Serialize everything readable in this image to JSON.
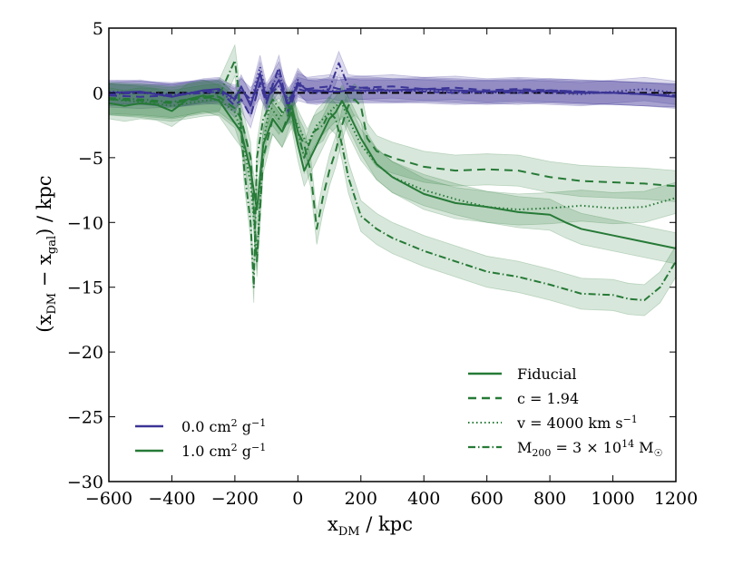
{
  "chart_data": {
    "type": "line",
    "xlabel": "x_DM / kpc",
    "ylabel": "(x_DM − x_gal) / kpc",
    "xlim": [
      -600,
      1200
    ],
    "ylim": [
      -30,
      5
    ],
    "xticks": [
      -600,
      -400,
      -200,
      0,
      200,
      400,
      600,
      800,
      1000,
      1200
    ],
    "yticks": [
      5,
      0,
      -5,
      -10,
      -15,
      -20,
      -25,
      -30
    ],
    "xtick_labels": [
      "−600",
      "−400",
      "−200",
      "0",
      "200",
      "400",
      "600",
      "800",
      "1000",
      "1200"
    ],
    "ytick_labels": [
      "5",
      "0",
      "−5",
      "−10",
      "−15",
      "−20",
      "−25",
      "−30"
    ],
    "grid": false,
    "colors": {
      "sigma0": "#3b3496",
      "sigma1": "#267a37"
    },
    "legend_sigma": {
      "placement": "lower-left",
      "entries": [
        {
          "name": "0.0 cm² g⁻¹",
          "color_key": "sigma0",
          "dash": "solid"
        },
        {
          "name": "1.0 cm² g⁻¹",
          "color_key": "sigma1",
          "dash": "solid"
        }
      ]
    },
    "legend_style": {
      "placement": "lower-right",
      "entries": [
        {
          "name": "Fiducial",
          "dash": "solid"
        },
        {
          "name": "c = 1.94",
          "dash": "dashed"
        },
        {
          "name": "v = 4000 km s⁻¹",
          "dash": "dotted"
        },
        {
          "name": "M₂₀₀ = 3 × 10¹⁴ M☉",
          "dash": "dashdot"
        }
      ]
    },
    "reference_line": {
      "y": 0,
      "style": "dashed",
      "color": "#000000"
    },
    "series": [
      {
        "group": "sigma0",
        "style": "solid",
        "band": 0.9,
        "x": [
          -600,
          -500,
          -400,
          -300,
          -250,
          -200,
          -180,
          -150,
          -120,
          -100,
          -60,
          -30,
          0,
          30,
          60,
          100,
          130,
          160,
          200,
          300,
          400,
          500,
          600,
          700,
          800,
          900,
          1000,
          1100,
          1200
        ],
        "y": [
          0.0,
          0.1,
          -0.3,
          0.2,
          0.3,
          -0.5,
          0.5,
          -1.0,
          1.5,
          -0.5,
          1.0,
          -1.0,
          0.8,
          0.2,
          0.2,
          0.1,
          0.1,
          0.2,
          0.2,
          0.2,
          0.3,
          0.2,
          0.1,
          0.2,
          0.1,
          0.0,
          0.0,
          -0.1,
          -0.3
        ]
      },
      {
        "group": "sigma0",
        "style": "dashed",
        "band": 0.9,
        "x": [
          -600,
          -500,
          -400,
          -300,
          -250,
          -200,
          -180,
          -150,
          -120,
          -100,
          -60,
          -30,
          0,
          30,
          60,
          100,
          130,
          160,
          200,
          300,
          400,
          500,
          600,
          700,
          800,
          900,
          1000,
          1100,
          1200
        ],
        "y": [
          -0.2,
          -0.3,
          -0.2,
          0.1,
          0.2,
          -1.0,
          -0.5,
          -1.8,
          0.8,
          -0.8,
          2.0,
          -1.5,
          0.6,
          0.3,
          0.4,
          0.5,
          0.3,
          0.3,
          0.4,
          0.5,
          0.3,
          0.4,
          0.2,
          0.3,
          0.2,
          0.1,
          0.0,
          -0.1,
          -0.2
        ]
      },
      {
        "group": "sigma0",
        "style": "dotted",
        "band": 0.9,
        "x": [
          -600,
          -500,
          -400,
          -300,
          -250,
          -200,
          -180,
          -150,
          -120,
          -100,
          -60,
          -30,
          0,
          30,
          60,
          100,
          130,
          160,
          200,
          300,
          400,
          500,
          600,
          700,
          800,
          900,
          1000,
          1100,
          1200
        ],
        "y": [
          0.1,
          0.0,
          -0.1,
          0.1,
          0.0,
          -0.6,
          0.3,
          -0.8,
          2.0,
          -0.2,
          1.5,
          -0.8,
          1.0,
          0.1,
          0.0,
          0.2,
          0.1,
          0.2,
          0.1,
          0.1,
          0.2,
          0.1,
          0.0,
          0.1,
          0.0,
          -0.1,
          0.1,
          0.3,
          0.0
        ]
      },
      {
        "group": "sigma0",
        "style": "dashdot",
        "band": 0.9,
        "x": [
          -600,
          -500,
          -400,
          -300,
          -250,
          -200,
          -180,
          -150,
          -120,
          -100,
          -60,
          -30,
          0,
          30,
          60,
          100,
          130,
          160,
          200,
          300,
          400,
          500,
          600,
          700,
          800,
          900,
          1000,
          1100,
          1200
        ],
        "y": [
          -0.1,
          0.0,
          -0.2,
          0.0,
          0.1,
          -0.3,
          0.2,
          -0.5,
          0.5,
          -0.3,
          0.5,
          -0.5,
          0.3,
          0.1,
          0.1,
          0.3,
          2.3,
          0.5,
          0.4,
          0.2,
          0.1,
          0.0,
          0.1,
          0.0,
          0.2,
          0.1,
          0.0,
          -0.1,
          -0.2
        ]
      },
      {
        "group": "sigma1",
        "style": "solid",
        "band": 1.2,
        "x": [
          -600,
          -550,
          -500,
          -450,
          -400,
          -350,
          -300,
          -250,
          -210,
          -180,
          -150,
          -130,
          -110,
          -80,
          -50,
          -20,
          0,
          20,
          40,
          60,
          80,
          100,
          120,
          140,
          160,
          200,
          250,
          300,
          400,
          500,
          600,
          700,
          800,
          850,
          900,
          1000,
          1100,
          1200
        ],
        "y": [
          -0.8,
          -1.0,
          -0.8,
          -0.9,
          -1.4,
          -0.5,
          -0.2,
          -0.6,
          -2.0,
          -3.0,
          -6.0,
          -9.0,
          -4.0,
          -2.0,
          -3.0,
          -1.5,
          -4.0,
          -6.0,
          -5.0,
          -4.0,
          -3.0,
          -2.0,
          -1.5,
          -0.6,
          -1.5,
          -3.5,
          -5.5,
          -6.5,
          -7.8,
          -8.5,
          -8.8,
          -9.2,
          -9.4,
          -10.0,
          -10.5,
          -11.0,
          -11.5,
          -12.0
        ]
      },
      {
        "group": "sigma1",
        "style": "dashed",
        "band": 1.2,
        "x": [
          -600,
          -500,
          -400,
          -300,
          -250,
          -200,
          -180,
          -150,
          -130,
          -110,
          -80,
          -50,
          -20,
          0,
          20,
          40,
          60,
          80,
          100,
          120,
          140,
          160,
          180,
          200,
          220,
          250,
          300,
          400,
          500,
          600,
          700,
          800,
          900,
          1000,
          1100,
          1200
        ],
        "y": [
          -0.5,
          -0.6,
          -0.8,
          -0.4,
          -0.3,
          -1.2,
          -2.0,
          -5.0,
          -13.0,
          -5.0,
          -2.0,
          -3.0,
          -1.0,
          -3.0,
          -4.0,
          -6.0,
          -10.5,
          -8.0,
          -6.0,
          -4.5,
          -2.5,
          -1.0,
          -0.5,
          -1.0,
          -3.5,
          -4.5,
          -5.0,
          -5.7,
          -6.0,
          -5.9,
          -6.0,
          -6.5,
          -6.8,
          -6.9,
          -7.0,
          -7.2
        ]
      },
      {
        "group": "sigma1",
        "style": "dotted",
        "band": 1.2,
        "x": [
          -600,
          -500,
          -400,
          -300,
          -250,
          -200,
          -180,
          -150,
          -130,
          -110,
          -90,
          -60,
          -30,
          0,
          30,
          60,
          100,
          120,
          140,
          160,
          200,
          250,
          300,
          400,
          500,
          600,
          700,
          800,
          900,
          1000,
          1100,
          1200
        ],
        "y": [
          -0.5,
          -0.7,
          -1.0,
          -0.6,
          -0.5,
          -1.5,
          -3.0,
          -7.0,
          -12.5,
          -4.0,
          -1.0,
          -2.0,
          -0.8,
          -2.5,
          -4.0,
          -2.5,
          -1.5,
          -1.0,
          -0.8,
          -2.0,
          -4.0,
          -5.5,
          -6.5,
          -7.5,
          -8.2,
          -8.8,
          -9.0,
          -8.9,
          -8.7,
          -8.9,
          -8.8,
          -8.1
        ]
      },
      {
        "group": "sigma1",
        "style": "dashdot",
        "band": 1.2,
        "x": [
          -600,
          -500,
          -400,
          -300,
          -250,
          -200,
          -190,
          -170,
          -150,
          -140,
          -130,
          -110,
          -80,
          -50,
          -20,
          0,
          20,
          50,
          80,
          100,
          120,
          140,
          160,
          180,
          200,
          250,
          300,
          400,
          500,
          600,
          650,
          700,
          800,
          900,
          1000,
          1050,
          1100,
          1150,
          1200
        ],
        "y": [
          -0.4,
          -0.5,
          -0.7,
          -0.3,
          -0.2,
          2.5,
          0.5,
          -6.0,
          -10.0,
          -15.0,
          -5.0,
          -2.0,
          -0.5,
          -1.5,
          -1.0,
          -3.0,
          -5.0,
          -3.0,
          -2.5,
          -1.5,
          -2.0,
          -4.0,
          -6.5,
          -8.0,
          -9.5,
          -10.5,
          -11.2,
          -12.2,
          -13.0,
          -13.8,
          -14.0,
          -14.2,
          -14.8,
          -15.5,
          -15.6,
          -15.9,
          -16.0,
          -15.0,
          -13.0
        ]
      }
    ]
  }
}
